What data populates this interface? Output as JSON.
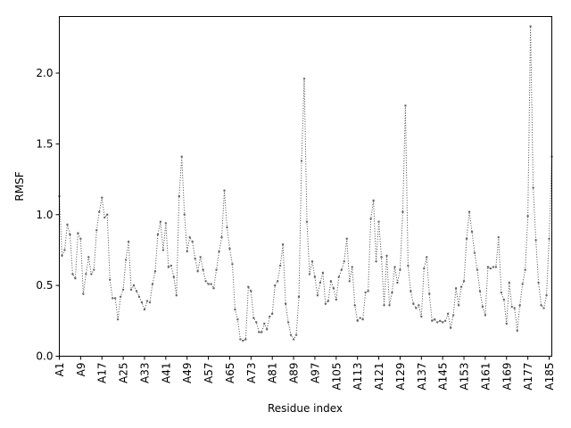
{
  "chart_data": {
    "type": "line",
    "xlabel": "Residue index",
    "ylabel": "RMSF",
    "ylim": [
      0,
      2.4
    ],
    "yticks": [
      "0.0",
      "0.5",
      "1.0",
      "1.5",
      "2.0"
    ],
    "ytick_values": [
      0,
      0.5,
      1.0,
      1.5,
      2.0
    ],
    "xtick_labels": [
      "A1",
      "A9",
      "A17",
      "A25",
      "A33",
      "A41",
      "A49",
      "A57",
      "A65",
      "A73",
      "A81",
      "A89",
      "A97",
      "A105",
      "A113",
      "A121",
      "A129",
      "A137",
      "A145",
      "A153",
      "A161",
      "A169",
      "A177",
      "A185"
    ],
    "x_start": 1,
    "x_step": 8,
    "line_color": "#666666",
    "line_style": "dotted",
    "marker": "small-dot",
    "series": [
      {
        "values": [
          1.13,
          0.71,
          0.75,
          0.93,
          0.86,
          0.58,
          0.55,
          0.87,
          0.83,
          0.44,
          0.58,
          0.7,
          0.58,
          0.61,
          0.89,
          1.02,
          1.12,
          0.98,
          1.0,
          0.54,
          0.41,
          0.41,
          0.26,
          0.42,
          0.47,
          0.68,
          0.81,
          0.47,
          0.5,
          0.46,
          0.42,
          0.38,
          0.33,
          0.39,
          0.38,
          0.51,
          0.6,
          0.86,
          0.95,
          0.75,
          0.94,
          0.63,
          0.64,
          0.56,
          0.43,
          1.13,
          1.41,
          1.0,
          0.74,
          0.84,
          0.81,
          0.69,
          0.6,
          0.7,
          0.61,
          0.53,
          0.51,
          0.51,
          0.48,
          0.61,
          0.74,
          0.84,
          1.17,
          0.91,
          0.76,
          0.65,
          0.33,
          0.26,
          0.12,
          0.11,
          0.12,
          0.49,
          0.46,
          0.27,
          0.24,
          0.17,
          0.17,
          0.23,
          0.19,
          0.28,
          0.3,
          0.5,
          0.53,
          0.64,
          0.79,
          0.37,
          0.24,
          0.15,
          0.12,
          0.15,
          0.42,
          1.38,
          1.96,
          0.95,
          0.58,
          0.67,
          0.56,
          0.43,
          0.52,
          0.59,
          0.37,
          0.39,
          0.53,
          0.48,
          0.4,
          0.56,
          0.61,
          0.67,
          0.83,
          0.53,
          0.63,
          0.36,
          0.25,
          0.27,
          0.26,
          0.45,
          0.46,
          0.97,
          1.1,
          0.67,
          0.95,
          0.7,
          0.36,
          0.71,
          0.36,
          0.45,
          0.63,
          0.52,
          0.61,
          1.02,
          1.77,
          0.64,
          0.46,
          0.37,
          0.34,
          0.36,
          0.28,
          0.62,
          0.7,
          0.44,
          0.25,
          0.26,
          0.24,
          0.25,
          0.24,
          0.25,
          0.3,
          0.2,
          0.29,
          0.48,
          0.36,
          0.49,
          0.53,
          0.83,
          1.02,
          0.88,
          0.73,
          0.61,
          0.46,
          0.35,
          0.29,
          0.63,
          0.62,
          0.63,
          0.63,
          0.84,
          0.45,
          0.4,
          0.23,
          0.52,
          0.35,
          0.34,
          0.18,
          0.36,
          0.51,
          0.61,
          0.99,
          2.33,
          1.19,
          0.82,
          0.52,
          0.36,
          0.34,
          0.43,
          0.83,
          1.41
        ]
      }
    ]
  }
}
